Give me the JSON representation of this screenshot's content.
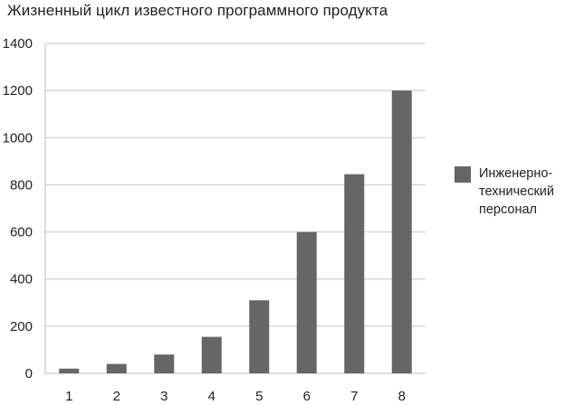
{
  "chart_data": {
    "type": "bar",
    "title": "Жизненный цикл известного программного продукта",
    "xlabel": "",
    "ylabel": "",
    "categories": [
      "1",
      "2",
      "3",
      "4",
      "5",
      "6",
      "7",
      "8"
    ],
    "series": [
      {
        "name": "Инженерно-технический персонал",
        "values": [
          20,
          40,
          80,
          155,
          310,
          600,
          845,
          1200
        ]
      }
    ],
    "ylim": [
      0,
      1400
    ],
    "yticks": [
      "0",
      "200",
      "400",
      "600",
      "800",
      "1000",
      "1200",
      "1400"
    ],
    "grid": true,
    "legend_position": "right",
    "colors": {
      "bar": "#666666",
      "grid": "#c8c8c8",
      "axis": "#bdbdbd",
      "plot_background": "#ffffff"
    }
  },
  "legend": {
    "label_line1": "Инженерно-",
    "label_line2": "технический",
    "label_line3": "персонал"
  }
}
